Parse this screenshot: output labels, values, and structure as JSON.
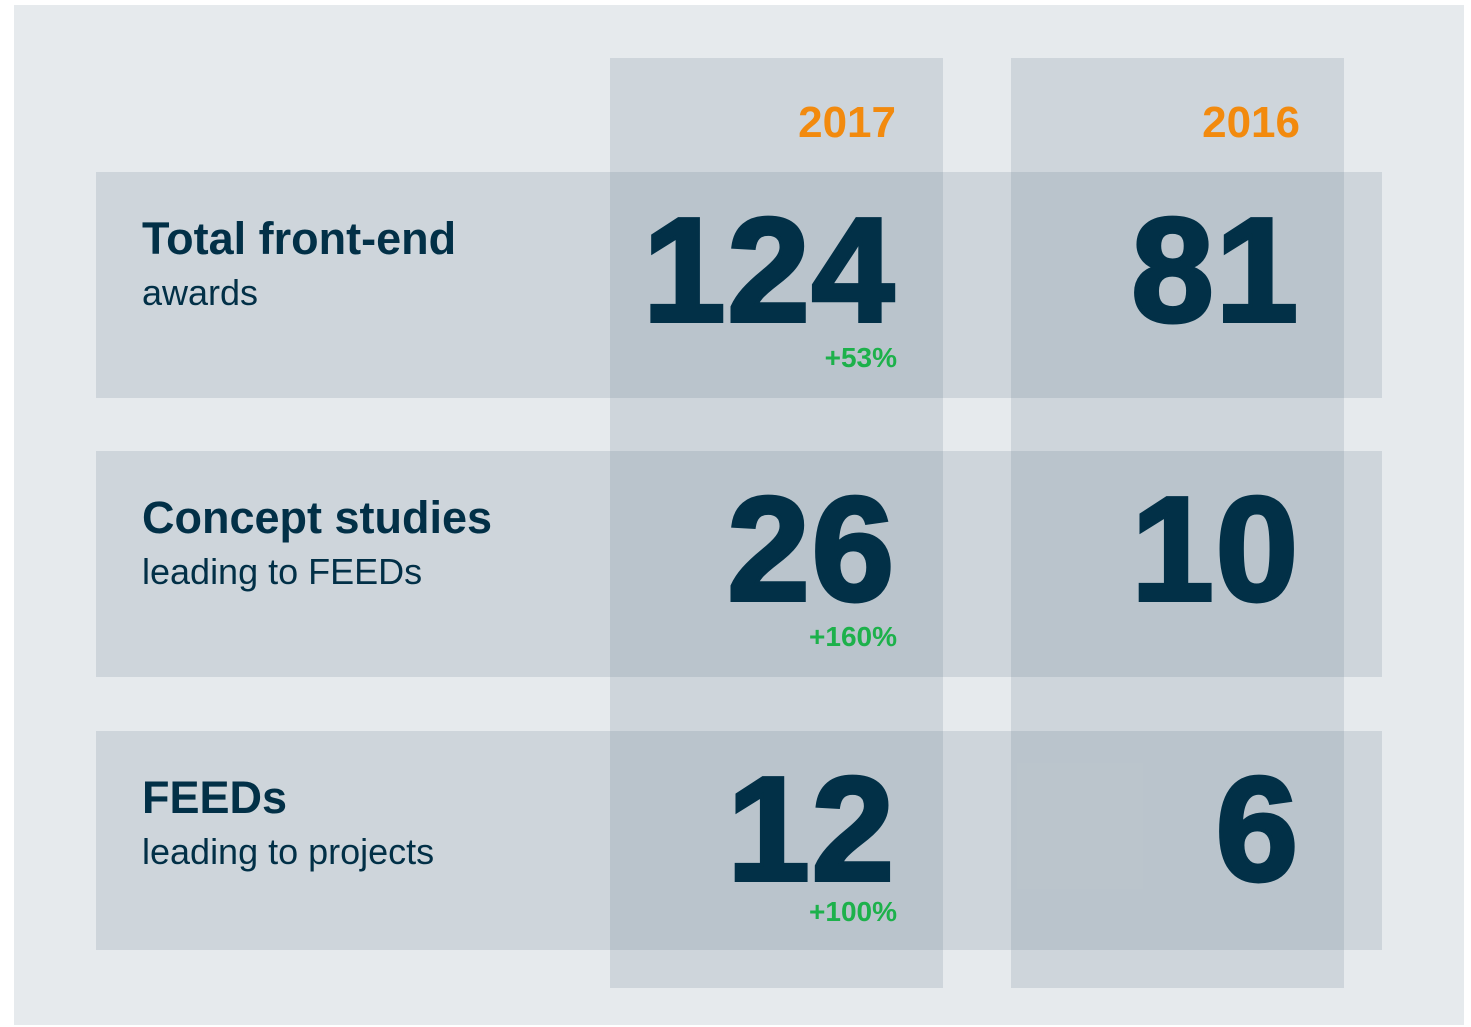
{
  "table": {
    "columns": [
      "2017",
      "2016"
    ],
    "rows": [
      {
        "title": "Total front-end",
        "subtitle": "awards",
        "values": [
          "124",
          "81"
        ],
        "change": "+53%"
      },
      {
        "title": "Concept studies",
        "subtitle": "leading to FEEDs",
        "values": [
          "26",
          "10"
        ],
        "change": "+160%"
      },
      {
        "title": "FEEDs",
        "subtitle": "leading to projects",
        "values": [
          "12",
          "6"
        ],
        "change": "+100%"
      }
    ]
  }
}
